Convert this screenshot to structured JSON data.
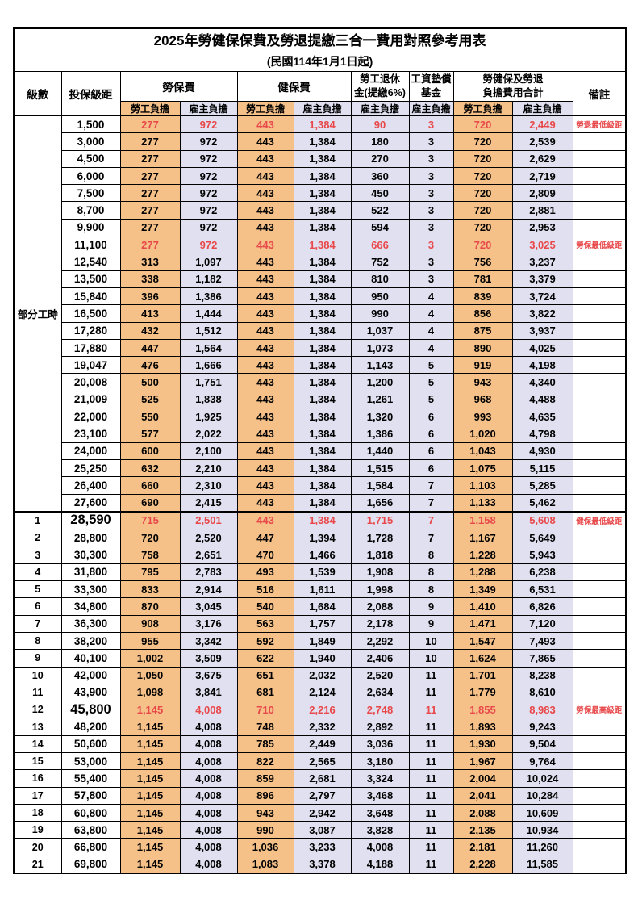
{
  "title": "2025年勞健保保費及勞退提繳三合一費用對照參考用表",
  "subtitle": "(民國114年1月1日起)",
  "headers": {
    "level": "級數",
    "bracket": "投保級距",
    "labor_insurance": "勞保費",
    "health_insurance": "健保費",
    "pension_line1": "勞工退休",
    "pension_line2": "金(提繳6%)",
    "fund_line1": "工資墊償",
    "fund_line2": "基金",
    "total_line1": "勞健保及勞退",
    "total_line2": "負擔費用合計",
    "remark": "備註",
    "employee": "勞工負擔",
    "employer": "雇主負擔"
  },
  "part_time_label": "部分工時",
  "part_time_rowspan": 23,
  "colors": {
    "employee_bg": "#F5C189",
    "employer_bg": "#E1E0F1",
    "highlight_red": "#E8484A"
  },
  "rows": [
    {
      "level": "",
      "bracket": "1,500",
      "li_emp": "277",
      "li_er": "972",
      "hi_emp": "443",
      "hi_er": "1,384",
      "pension": "90",
      "fund": "3",
      "tot_emp": "720",
      "tot_er": "2,449",
      "remark": "勞退最低級距",
      "hl": true
    },
    {
      "level": "",
      "bracket": "3,000",
      "li_emp": "277",
      "li_er": "972",
      "hi_emp": "443",
      "hi_er": "1,384",
      "pension": "180",
      "fund": "3",
      "tot_emp": "720",
      "tot_er": "2,539",
      "remark": ""
    },
    {
      "level": "",
      "bracket": "4,500",
      "li_emp": "277",
      "li_er": "972",
      "hi_emp": "443",
      "hi_er": "1,384",
      "pension": "270",
      "fund": "3",
      "tot_emp": "720",
      "tot_er": "2,629",
      "remark": ""
    },
    {
      "level": "",
      "bracket": "6,000",
      "li_emp": "277",
      "li_er": "972",
      "hi_emp": "443",
      "hi_er": "1,384",
      "pension": "360",
      "fund": "3",
      "tot_emp": "720",
      "tot_er": "2,719",
      "remark": ""
    },
    {
      "level": "",
      "bracket": "7,500",
      "li_emp": "277",
      "li_er": "972",
      "hi_emp": "443",
      "hi_er": "1,384",
      "pension": "450",
      "fund": "3",
      "tot_emp": "720",
      "tot_er": "2,809",
      "remark": ""
    },
    {
      "level": "",
      "bracket": "8,700",
      "li_emp": "277",
      "li_er": "972",
      "hi_emp": "443",
      "hi_er": "1,384",
      "pension": "522",
      "fund": "3",
      "tot_emp": "720",
      "tot_er": "2,881",
      "remark": ""
    },
    {
      "level": "",
      "bracket": "9,900",
      "li_emp": "277",
      "li_er": "972",
      "hi_emp": "443",
      "hi_er": "1,384",
      "pension": "594",
      "fund": "3",
      "tot_emp": "720",
      "tot_er": "2,953",
      "remark": ""
    },
    {
      "level": "",
      "bracket": "11,100",
      "li_emp": "277",
      "li_er": "972",
      "hi_emp": "443",
      "hi_er": "1,384",
      "pension": "666",
      "fund": "3",
      "tot_emp": "720",
      "tot_er": "3,025",
      "remark": "勞保最低級距",
      "hl": true
    },
    {
      "level": "",
      "bracket": "12,540",
      "li_emp": "313",
      "li_er": "1,097",
      "hi_emp": "443",
      "hi_er": "1,384",
      "pension": "752",
      "fund": "3",
      "tot_emp": "756",
      "tot_er": "3,237",
      "remark": ""
    },
    {
      "level": "",
      "bracket": "13,500",
      "li_emp": "338",
      "li_er": "1,182",
      "hi_emp": "443",
      "hi_er": "1,384",
      "pension": "810",
      "fund": "3",
      "tot_emp": "781",
      "tot_er": "3,379",
      "remark": ""
    },
    {
      "level": "",
      "bracket": "15,840",
      "li_emp": "396",
      "li_er": "1,386",
      "hi_emp": "443",
      "hi_er": "1,384",
      "pension": "950",
      "fund": "4",
      "tot_emp": "839",
      "tot_er": "3,724",
      "remark": ""
    },
    {
      "level": "",
      "bracket": "16,500",
      "li_emp": "413",
      "li_er": "1,444",
      "hi_emp": "443",
      "hi_er": "1,384",
      "pension": "990",
      "fund": "4",
      "tot_emp": "856",
      "tot_er": "3,822",
      "remark": ""
    },
    {
      "level": "",
      "bracket": "17,280",
      "li_emp": "432",
      "li_er": "1,512",
      "hi_emp": "443",
      "hi_er": "1,384",
      "pension": "1,037",
      "fund": "4",
      "tot_emp": "875",
      "tot_er": "3,937",
      "remark": ""
    },
    {
      "level": "",
      "bracket": "17,880",
      "li_emp": "447",
      "li_er": "1,564",
      "hi_emp": "443",
      "hi_er": "1,384",
      "pension": "1,073",
      "fund": "4",
      "tot_emp": "890",
      "tot_er": "4,025",
      "remark": ""
    },
    {
      "level": "",
      "bracket": "19,047",
      "li_emp": "476",
      "li_er": "1,666",
      "hi_emp": "443",
      "hi_er": "1,384",
      "pension": "1,143",
      "fund": "5",
      "tot_emp": "919",
      "tot_er": "4,198",
      "remark": ""
    },
    {
      "level": "",
      "bracket": "20,008",
      "li_emp": "500",
      "li_er": "1,751",
      "hi_emp": "443",
      "hi_er": "1,384",
      "pension": "1,200",
      "fund": "5",
      "tot_emp": "943",
      "tot_er": "4,340",
      "remark": ""
    },
    {
      "level": "",
      "bracket": "21,009",
      "li_emp": "525",
      "li_er": "1,838",
      "hi_emp": "443",
      "hi_er": "1,384",
      "pension": "1,261",
      "fund": "5",
      "tot_emp": "968",
      "tot_er": "4,488",
      "remark": ""
    },
    {
      "level": "",
      "bracket": "22,000",
      "li_emp": "550",
      "li_er": "1,925",
      "hi_emp": "443",
      "hi_er": "1,384",
      "pension": "1,320",
      "fund": "6",
      "tot_emp": "993",
      "tot_er": "4,635",
      "remark": ""
    },
    {
      "level": "",
      "bracket": "23,100",
      "li_emp": "577",
      "li_er": "2,022",
      "hi_emp": "443",
      "hi_er": "1,384",
      "pension": "1,386",
      "fund": "6",
      "tot_emp": "1,020",
      "tot_er": "4,798",
      "remark": ""
    },
    {
      "level": "",
      "bracket": "24,000",
      "li_emp": "600",
      "li_er": "2,100",
      "hi_emp": "443",
      "hi_er": "1,384",
      "pension": "1,440",
      "fund": "6",
      "tot_emp": "1,043",
      "tot_er": "4,930",
      "remark": ""
    },
    {
      "level": "",
      "bracket": "25,250",
      "li_emp": "632",
      "li_er": "2,210",
      "hi_emp": "443",
      "hi_er": "1,384",
      "pension": "1,515",
      "fund": "6",
      "tot_emp": "1,075",
      "tot_er": "5,115",
      "remark": ""
    },
    {
      "level": "",
      "bracket": "26,400",
      "li_emp": "660",
      "li_er": "2,310",
      "hi_emp": "443",
      "hi_er": "1,384",
      "pension": "1,584",
      "fund": "7",
      "tot_emp": "1,103",
      "tot_er": "5,285",
      "remark": ""
    },
    {
      "level": "",
      "bracket": "27,600",
      "li_emp": "690",
      "li_er": "2,415",
      "hi_emp": "443",
      "hi_er": "1,384",
      "pension": "1,656",
      "fund": "7",
      "tot_emp": "1,133",
      "tot_er": "5,462",
      "remark": ""
    },
    {
      "level": "1",
      "bracket": "28,590",
      "li_emp": "715",
      "li_er": "2,501",
      "hi_emp": "443",
      "hi_er": "1,384",
      "pension": "1,715",
      "fund": "7",
      "tot_emp": "1,158",
      "tot_er": "5,608",
      "remark": "健保最低級距",
      "hl": true,
      "big": true,
      "sep": true
    },
    {
      "level": "2",
      "bracket": "28,800",
      "li_emp": "720",
      "li_er": "2,520",
      "hi_emp": "447",
      "hi_er": "1,394",
      "pension": "1,728",
      "fund": "7",
      "tot_emp": "1,167",
      "tot_er": "5,649",
      "remark": ""
    },
    {
      "level": "3",
      "bracket": "30,300",
      "li_emp": "758",
      "li_er": "2,651",
      "hi_emp": "470",
      "hi_er": "1,466",
      "pension": "1,818",
      "fund": "8",
      "tot_emp": "1,228",
      "tot_er": "5,943",
      "remark": ""
    },
    {
      "level": "4",
      "bracket": "31,800",
      "li_emp": "795",
      "li_er": "2,783",
      "hi_emp": "493",
      "hi_er": "1,539",
      "pension": "1,908",
      "fund": "8",
      "tot_emp": "1,288",
      "tot_er": "6,238",
      "remark": ""
    },
    {
      "level": "5",
      "bracket": "33,300",
      "li_emp": "833",
      "li_er": "2,914",
      "hi_emp": "516",
      "hi_er": "1,611",
      "pension": "1,998",
      "fund": "8",
      "tot_emp": "1,349",
      "tot_er": "6,531",
      "remark": ""
    },
    {
      "level": "6",
      "bracket": "34,800",
      "li_emp": "870",
      "li_er": "3,045",
      "hi_emp": "540",
      "hi_er": "1,684",
      "pension": "2,088",
      "fund": "9",
      "tot_emp": "1,410",
      "tot_er": "6,826",
      "remark": ""
    },
    {
      "level": "7",
      "bracket": "36,300",
      "li_emp": "908",
      "li_er": "3,176",
      "hi_emp": "563",
      "hi_er": "1,757",
      "pension": "2,178",
      "fund": "9",
      "tot_emp": "1,471",
      "tot_er": "7,120",
      "remark": ""
    },
    {
      "level": "8",
      "bracket": "38,200",
      "li_emp": "955",
      "li_er": "3,342",
      "hi_emp": "592",
      "hi_er": "1,849",
      "pension": "2,292",
      "fund": "10",
      "tot_emp": "1,547",
      "tot_er": "7,493",
      "remark": ""
    },
    {
      "level": "9",
      "bracket": "40,100",
      "li_emp": "1,002",
      "li_er": "3,509",
      "hi_emp": "622",
      "hi_er": "1,940",
      "pension": "2,406",
      "fund": "10",
      "tot_emp": "1,624",
      "tot_er": "7,865",
      "remark": ""
    },
    {
      "level": "10",
      "bracket": "42,000",
      "li_emp": "1,050",
      "li_er": "3,675",
      "hi_emp": "651",
      "hi_er": "2,032",
      "pension": "2,520",
      "fund": "11",
      "tot_emp": "1,701",
      "tot_er": "8,238",
      "remark": ""
    },
    {
      "level": "11",
      "bracket": "43,900",
      "li_emp": "1,098",
      "li_er": "3,841",
      "hi_emp": "681",
      "hi_er": "2,124",
      "pension": "2,634",
      "fund": "11",
      "tot_emp": "1,779",
      "tot_er": "8,610",
      "remark": ""
    },
    {
      "level": "12",
      "bracket": "45,800",
      "li_emp": "1,145",
      "li_er": "4,008",
      "hi_emp": "710",
      "hi_er": "2,216",
      "pension": "2,748",
      "fund": "11",
      "tot_emp": "1,855",
      "tot_er": "8,983",
      "remark": "勞保最高級距",
      "hl": true,
      "big": true
    },
    {
      "level": "13",
      "bracket": "48,200",
      "li_emp": "1,145",
      "li_er": "4,008",
      "hi_emp": "748",
      "hi_er": "2,332",
      "pension": "2,892",
      "fund": "11",
      "tot_emp": "1,893",
      "tot_er": "9,243",
      "remark": ""
    },
    {
      "level": "14",
      "bracket": "50,600",
      "li_emp": "1,145",
      "li_er": "4,008",
      "hi_emp": "785",
      "hi_er": "2,449",
      "pension": "3,036",
      "fund": "11",
      "tot_emp": "1,930",
      "tot_er": "9,504",
      "remark": ""
    },
    {
      "level": "15",
      "bracket": "53,000",
      "li_emp": "1,145",
      "li_er": "4,008",
      "hi_emp": "822",
      "hi_er": "2,565",
      "pension": "3,180",
      "fund": "11",
      "tot_emp": "1,967",
      "tot_er": "9,764",
      "remark": ""
    },
    {
      "level": "16",
      "bracket": "55,400",
      "li_emp": "1,145",
      "li_er": "4,008",
      "hi_emp": "859",
      "hi_er": "2,681",
      "pension": "3,324",
      "fund": "11",
      "tot_emp": "2,004",
      "tot_er": "10,024",
      "remark": ""
    },
    {
      "level": "17",
      "bracket": "57,800",
      "li_emp": "1,145",
      "li_er": "4,008",
      "hi_emp": "896",
      "hi_er": "2,797",
      "pension": "3,468",
      "fund": "11",
      "tot_emp": "2,041",
      "tot_er": "10,284",
      "remark": ""
    },
    {
      "level": "18",
      "bracket": "60,800",
      "li_emp": "1,145",
      "li_er": "4,008",
      "hi_emp": "943",
      "hi_er": "2,942",
      "pension": "3,648",
      "fund": "11",
      "tot_emp": "2,088",
      "tot_er": "10,609",
      "remark": ""
    },
    {
      "level": "19",
      "bracket": "63,800",
      "li_emp": "1,145",
      "li_er": "4,008",
      "hi_emp": "990",
      "hi_er": "3,087",
      "pension": "3,828",
      "fund": "11",
      "tot_emp": "2,135",
      "tot_er": "10,934",
      "remark": ""
    },
    {
      "level": "20",
      "bracket": "66,800",
      "li_emp": "1,145",
      "li_er": "4,008",
      "hi_emp": "1,036",
      "hi_er": "3,233",
      "pension": "4,008",
      "fund": "11",
      "tot_emp": "2,181",
      "tot_er": "11,260",
      "remark": ""
    },
    {
      "level": "21",
      "bracket": "69,800",
      "li_emp": "1,145",
      "li_er": "4,008",
      "hi_emp": "1,083",
      "hi_er": "3,378",
      "pension": "4,188",
      "fund": "11",
      "tot_emp": "2,228",
      "tot_er": "11,585",
      "remark": ""
    }
  ]
}
